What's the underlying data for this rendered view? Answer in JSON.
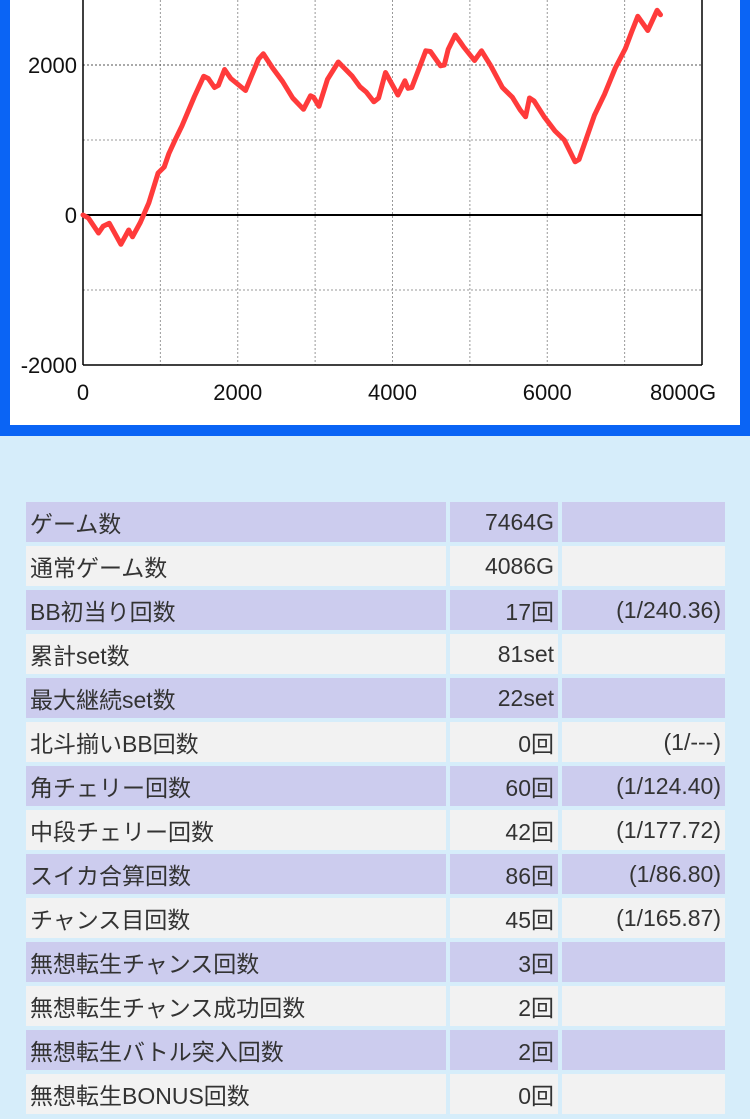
{
  "chart_data": {
    "type": "line",
    "xlabel": "",
    "ylabel": "",
    "x_ticks": [
      "0",
      "2000",
      "4000",
      "6000",
      "8000G"
    ],
    "y_ticks": [
      "2000",
      "0",
      "-2000"
    ],
    "xlim": [
      0,
      8000
    ],
    "ylim_visible": [
      -2000,
      2870
    ],
    "grid": true,
    "line_color": "#ff3b3b",
    "series": [
      {
        "x": [
          0,
          70,
          200,
          260,
          340,
          490,
          590,
          640,
          740,
          850,
          970,
          1050,
          1110,
          1190,
          1280,
          1440,
          1560,
          1620,
          1700,
          1750,
          1830,
          1910,
          2100,
          2270,
          2330,
          2450,
          2580,
          2710,
          2850,
          2940,
          2980,
          3050,
          3160,
          3300,
          3480,
          3580,
          3660,
          3760,
          3820,
          3910,
          4070,
          4160,
          4200,
          4250,
          4430,
          4490,
          4620,
          4670,
          4720,
          4810,
          4880,
          4920,
          5060,
          5150,
          5270,
          5420,
          5550,
          5650,
          5720,
          5770,
          5830,
          5960,
          6100,
          6220,
          6360,
          6410,
          6610,
          6740,
          6880,
          7010,
          7090,
          7170,
          7300,
          7420,
          7464
        ],
        "y": [
          0,
          -40,
          -240,
          -150,
          -110,
          -390,
          -200,
          -290,
          -100,
          160,
          560,
          640,
          820,
          1000,
          1190,
          1580,
          1850,
          1820,
          1700,
          1730,
          1940,
          1820,
          1660,
          2080,
          2150,
          1960,
          1780,
          1560,
          1410,
          1590,
          1570,
          1450,
          1810,
          2040,
          1850,
          1710,
          1640,
          1510,
          1560,
          1900,
          1600,
          1790,
          1690,
          1700,
          2190,
          2180,
          1990,
          2000,
          2210,
          2400,
          2300,
          2240,
          2060,
          2190,
          1990,
          1700,
          1570,
          1400,
          1310,
          1560,
          1520,
          1310,
          1120,
          1000,
          710,
          740,
          1330,
          1610,
          1960,
          2220,
          2440,
          2650,
          2460,
          2730,
          2670
        ]
      }
    ]
  },
  "colors": {
    "frame": "#0a64f5",
    "row_odd": "#ccccee",
    "row_even": "#f2f2f2",
    "background": "#d6edfa"
  },
  "stats": [
    {
      "label": "ゲーム数",
      "value": "7464G",
      "ratio": ""
    },
    {
      "label": "通常ゲーム数",
      "value": "4086G",
      "ratio": ""
    },
    {
      "label": "BB初当り回数",
      "value": "17回",
      "ratio": "(1/240.36)"
    },
    {
      "label": "累計set数",
      "value": "81set",
      "ratio": ""
    },
    {
      "label": "最大継続set数",
      "value": "22set",
      "ratio": ""
    },
    {
      "label": "北斗揃いBB回数",
      "value": "0回",
      "ratio": "(1/---)"
    },
    {
      "label": "角チェリー回数",
      "value": "60回",
      "ratio": "(1/124.40)"
    },
    {
      "label": "中段チェリー回数",
      "value": "42回",
      "ratio": "(1/177.72)"
    },
    {
      "label": "スイカ合算回数",
      "value": "86回",
      "ratio": "(1/86.80)"
    },
    {
      "label": "チャンス目回数",
      "value": "45回",
      "ratio": "(1/165.87)"
    },
    {
      "label": "無想転生チャンス回数",
      "value": "3回",
      "ratio": ""
    },
    {
      "label": "無想転生チャンス成功回数",
      "value": "2回",
      "ratio": ""
    },
    {
      "label": "無想転生バトル突入回数",
      "value": "2回",
      "ratio": ""
    },
    {
      "label": "無想転生BONUS回数",
      "value": "0回",
      "ratio": ""
    }
  ]
}
